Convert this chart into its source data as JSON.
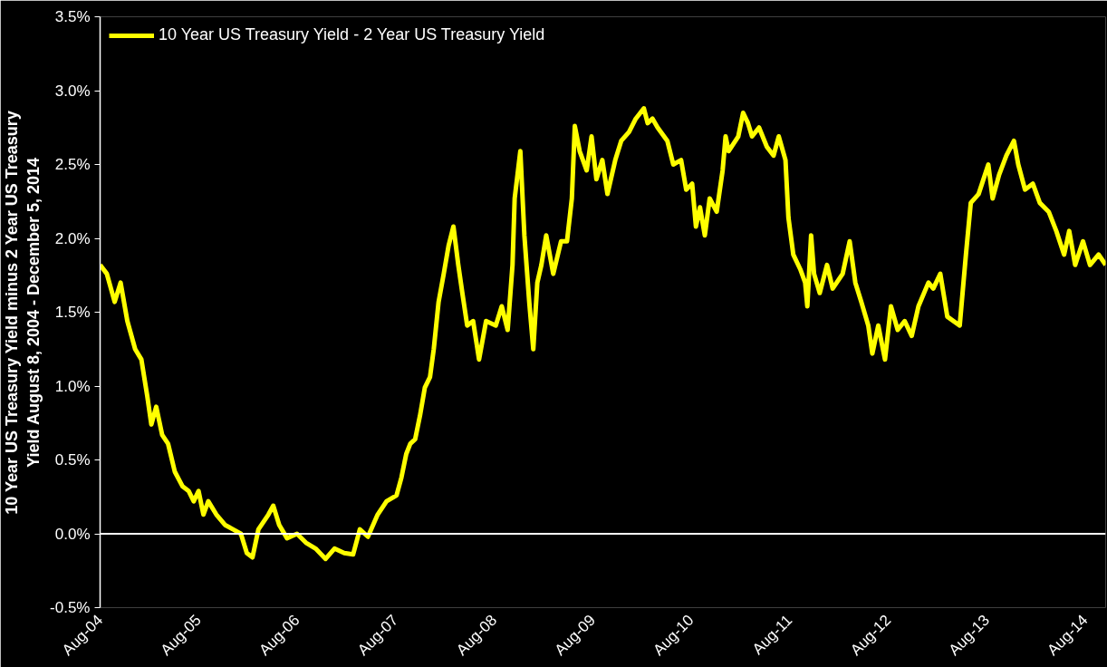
{
  "chart_data": {
    "type": "line",
    "ylabel": "10 Year US Treasury Yield minus 2 Year US Treasury Yield August 8, 2004 - December 5, 2014",
    "x": [
      "2004-08-01",
      "2004-08-26",
      "2004-09-24",
      "2004-10-16",
      "2004-11-10",
      "2004-12-09",
      "2005-01-01",
      "2005-01-23",
      "2005-02-07",
      "2005-02-25",
      "2005-03-19",
      "2005-04-10",
      "2005-05-05",
      "2005-06-03",
      "2005-06-25",
      "2005-07-14",
      "2005-08-01",
      "2005-08-19",
      "2005-09-06",
      "2005-10-06",
      "2005-11-07",
      "2005-12-07",
      "2006-01-05",
      "2006-01-27",
      "2006-02-17",
      "2006-03-11",
      "2006-04-17",
      "2006-05-05",
      "2006-05-27",
      "2006-06-25",
      "2006-08-01",
      "2006-09-03",
      "2006-10-09",
      "2006-11-15",
      "2006-12-18",
      "2007-01-23",
      "2007-02-25",
      "2007-03-22",
      "2007-04-21",
      "2007-05-27",
      "2007-06-29",
      "2007-08-05",
      "2007-08-23",
      "2007-09-10",
      "2007-09-25",
      "2007-10-13",
      "2007-10-31",
      "2007-11-18",
      "2007-12-07",
      "2007-12-21",
      "2008-01-08",
      "2008-01-27",
      "2008-02-14",
      "2008-03-03",
      "2008-03-21",
      "2008-04-05",
      "2008-04-23",
      "2008-05-15",
      "2008-06-06",
      "2008-07-02",
      "2008-08-07",
      "2008-08-29",
      "2008-09-20",
      "2008-10-08",
      "2008-10-16",
      "2008-11-06",
      "2008-11-21",
      "2008-12-09",
      "2008-12-24",
      "2009-01-08",
      "2009-01-23",
      "2009-02-10",
      "2009-03-08",
      "2009-04-06",
      "2009-04-28",
      "2009-05-16",
      "2009-05-27",
      "2009-06-14",
      "2009-07-10",
      "2009-07-28",
      "2009-08-15",
      "2009-09-06",
      "2009-09-25",
      "2009-10-24",
      "2009-11-15",
      "2009-12-14",
      "2010-01-08",
      "2010-02-07",
      "2010-02-21",
      "2010-03-11",
      "2010-03-30",
      "2010-05-05",
      "2010-05-27",
      "2010-06-25",
      "2010-07-14",
      "2010-08-05",
      "2010-08-19",
      "2010-09-03",
      "2010-09-21",
      "2010-10-09",
      "2010-11-04",
      "2010-11-26",
      "2010-12-07",
      "2010-12-18",
      "2011-01-23",
      "2011-02-10",
      "2011-02-28",
      "2011-03-15",
      "2011-04-10",
      "2011-05-09",
      "2011-06-03",
      "2011-06-22",
      "2011-07-17",
      "2011-07-28",
      "2011-08-15",
      "2011-09-10",
      "2011-09-28",
      "2011-10-06",
      "2011-10-20",
      "2011-10-31",
      "2011-11-21",
      "2011-12-18",
      "2012-01-08",
      "2012-02-14",
      "2012-03-11",
      "2012-04-01",
      "2012-04-23",
      "2012-05-19",
      "2012-06-03",
      "2012-06-25",
      "2012-07-20",
      "2012-08-11",
      "2012-09-05",
      "2012-10-01",
      "2012-10-27",
      "2012-11-21",
      "2012-12-28",
      "2013-01-15",
      "2013-02-10",
      "2013-03-08",
      "2013-04-23",
      "2013-05-16",
      "2013-06-03",
      "2013-07-02",
      "2013-08-07",
      "2013-08-23",
      "2013-09-16",
      "2013-10-13",
      "2013-11-10",
      "2013-11-26",
      "2013-12-21",
      "2014-01-19",
      "2014-02-14",
      "2014-03-19",
      "2014-04-16",
      "2014-05-15",
      "2014-06-03",
      "2014-06-25",
      "2014-07-24",
      "2014-08-19",
      "2014-09-20",
      "2014-10-16"
    ],
    "series": [
      {
        "name": "10 Year US Treasury Yield - 2 Year US Treasury Yield",
        "color": "#ffff00",
        "values": [
          1.82,
          1.76,
          1.57,
          1.7,
          1.44,
          1.25,
          1.18,
          0.93,
          0.74,
          0.86,
          0.67,
          0.61,
          0.42,
          0.32,
          0.29,
          0.22,
          0.29,
          0.13,
          0.22,
          0.13,
          0.06,
          0.03,
          0.0,
          -0.13,
          -0.16,
          0.03,
          0.13,
          0.19,
          0.06,
          -0.03,
          0.0,
          -0.06,
          -0.1,
          -0.17,
          -0.1,
          -0.13,
          -0.14,
          0.03,
          -0.02,
          0.13,
          0.22,
          0.26,
          0.38,
          0.54,
          0.61,
          0.64,
          0.8,
          0.99,
          1.06,
          1.25,
          1.57,
          1.76,
          1.95,
          2.08,
          1.82,
          1.63,
          1.41,
          1.44,
          1.18,
          1.44,
          1.41,
          1.54,
          1.38,
          1.82,
          2.27,
          2.59,
          2.02,
          1.57,
          1.25,
          1.7,
          1.82,
          2.02,
          1.76,
          1.98,
          1.98,
          2.27,
          2.76,
          2.59,
          2.46,
          2.69,
          2.4,
          2.53,
          2.3,
          2.53,
          2.66,
          2.72,
          2.81,
          2.88,
          2.78,
          2.81,
          2.75,
          2.66,
          2.5,
          2.53,
          2.33,
          2.37,
          2.08,
          2.21,
          2.02,
          2.27,
          2.18,
          2.46,
          2.69,
          2.59,
          2.69,
          2.85,
          2.78,
          2.69,
          2.75,
          2.62,
          2.56,
          2.69,
          2.53,
          2.14,
          1.89,
          1.79,
          1.7,
          1.54,
          2.02,
          1.76,
          1.63,
          1.82,
          1.66,
          1.76,
          1.98,
          1.7,
          1.57,
          1.41,
          1.22,
          1.41,
          1.18,
          1.54,
          1.38,
          1.44,
          1.34,
          1.54,
          1.7,
          1.66,
          1.76,
          1.47,
          1.41,
          1.89,
          2.24,
          2.3,
          2.5,
          2.27,
          2.43,
          2.56,
          2.66,
          2.5,
          2.33,
          2.37,
          2.24,
          2.18,
          2.05,
          1.89,
          2.05,
          1.82,
          1.98,
          1.82,
          1.89,
          1.82
        ]
      }
    ],
    "xlim": [
      "2004-08-01",
      "2014-10-16"
    ],
    "xticks": [
      {
        "value": "2004-08-01",
        "label": "Aug-04"
      },
      {
        "value": "2005-08-01",
        "label": "Aug-05"
      },
      {
        "value": "2006-08-01",
        "label": "Aug-06"
      },
      {
        "value": "2007-08-01",
        "label": "Aug-07"
      },
      {
        "value": "2008-08-01",
        "label": "Aug-08"
      },
      {
        "value": "2009-08-01",
        "label": "Aug-09"
      },
      {
        "value": "2010-08-01",
        "label": "Aug-10"
      },
      {
        "value": "2011-08-01",
        "label": "Aug-11"
      },
      {
        "value": "2012-08-01",
        "label": "Aug-12"
      },
      {
        "value": "2013-08-01",
        "label": "Aug-13"
      },
      {
        "value": "2014-08-01",
        "label": "Aug-14"
      }
    ],
    "ylim": [
      -0.5,
      3.5
    ],
    "yticks": [
      {
        "value": -0.5,
        "label": "-0.5%"
      },
      {
        "value": 0,
        "label": "0.0%"
      },
      {
        "value": 0.5,
        "label": "0.5%"
      },
      {
        "value": 1,
        "label": "1.0%"
      },
      {
        "value": 1.5,
        "label": "1.5%"
      },
      {
        "value": 2,
        "label": "2.0%"
      },
      {
        "value": 2.5,
        "label": "2.5%"
      },
      {
        "value": 3,
        "label": "3.0%"
      },
      {
        "value": 3.5,
        "label": "3.5%"
      }
    ],
    "ref_lines": [
      {
        "axis": "y",
        "value": 0,
        "color": "#ffffff"
      }
    ],
    "legend": "top left",
    "grid": false,
    "marker": "none",
    "line_style": "solid"
  }
}
